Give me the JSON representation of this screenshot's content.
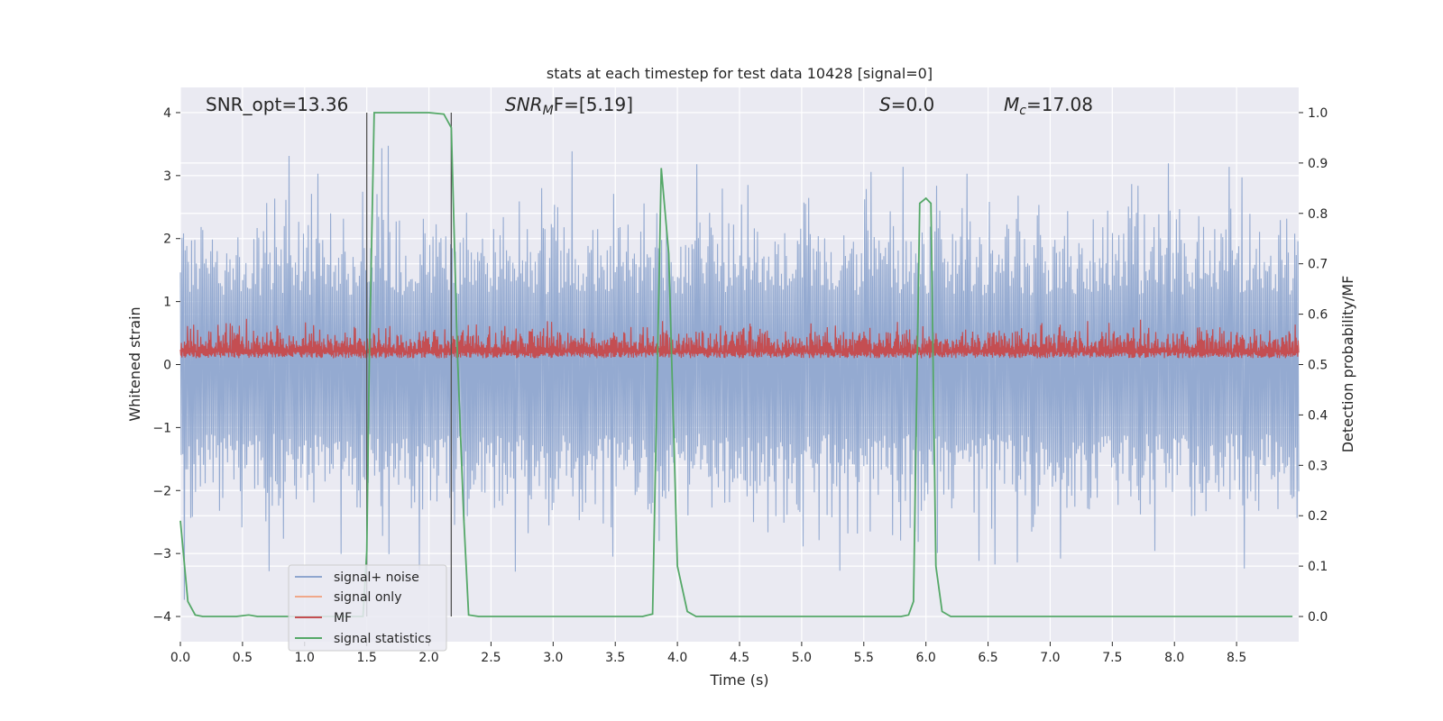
{
  "chart_data": {
    "type": "line",
    "title": "stats at each timestep for test data 10428 [signal=0]",
    "xlabel": "Time (s)",
    "ylabel": "Whitened strain",
    "ylabel_right": "Detection probability/MF",
    "xlim": [
      0.0,
      9.0
    ],
    "ylim": [
      -4.4,
      4.4
    ],
    "ylim_right": [
      -0.05,
      1.05
    ],
    "x_ticks": [
      "0.0",
      "0.5",
      "1.0",
      "1.5",
      "2.0",
      "2.5",
      "3.0",
      "3.5",
      "4.0",
      "4.5",
      "5.0",
      "5.5",
      "6.0",
      "6.5",
      "7.0",
      "7.5",
      "8.0",
      "8.5"
    ],
    "y_ticks": [
      "4",
      "3",
      "2",
      "1",
      "0",
      "−1",
      "−2",
      "−3",
      "−4"
    ],
    "y_ticks_right": [
      "1.0",
      "0.9",
      "0.8",
      "0.7",
      "0.6",
      "0.5",
      "0.4",
      "0.3",
      "0.2",
      "0.1",
      "0.0"
    ],
    "grid": true,
    "legend_position": "lower-left",
    "annotations": {
      "snr_opt": "SNR_opt=13.36",
      "snr_mf": "SNR_MF=[5.19]",
      "snr_mf_main": "SNR",
      "snr_mf_sub": "M",
      "snr_mf_rest": "F=[5.19]",
      "s_var": "S",
      "s_val": "=0.0",
      "mc_var": "M",
      "mc_sub": "c",
      "mc_val": "=17.08"
    },
    "vertical_markers": [
      1.5,
      2.18
    ],
    "series": [
      {
        "name": "signal+ noise",
        "color": "#8fa6cf",
        "axis": "left",
        "kind": "noise",
        "amplitude_range": [
          -4,
          4
        ]
      },
      {
        "name": "signal only",
        "color": "#f0a88a",
        "axis": "left",
        "values": []
      },
      {
        "name": "MF",
        "color": "#c44e52",
        "axis": "left",
        "kind": "band",
        "range": [
          0.1,
          1.0
        ]
      },
      {
        "name": "signal statistics",
        "color": "#55a868",
        "axis": "right",
        "x": [
          0.0,
          0.06,
          0.12,
          0.18,
          0.25,
          0.35,
          0.45,
          0.55,
          0.62,
          0.7,
          0.8,
          0.9,
          1.0,
          1.1,
          1.2,
          1.3,
          1.4,
          1.47,
          1.5,
          1.52,
          1.56,
          1.65,
          1.8,
          2.0,
          2.12,
          2.18,
          2.23,
          2.28,
          2.32,
          2.4,
          3.0,
          3.5,
          3.72,
          3.8,
          3.87,
          3.93,
          4.0,
          4.08,
          4.15,
          4.5,
          5.0,
          5.5,
          5.8,
          5.86,
          5.9,
          5.95,
          6.0,
          6.04,
          6.08,
          6.13,
          6.2,
          7.0,
          8.0,
          8.95
        ],
        "values": [
          0.19,
          0.03,
          0.003,
          0.0,
          0.0,
          0.0,
          0.0,
          0.003,
          0.0,
          0.0,
          0.0,
          0.0,
          0.0,
          0.0,
          0.0,
          0.0,
          0.0,
          0.0,
          0.13,
          0.5,
          1.0,
          1.0,
          1.0,
          1.0,
          0.997,
          0.97,
          0.52,
          0.2,
          0.003,
          0.0,
          0.0,
          0.0,
          0.0,
          0.005,
          0.89,
          0.72,
          0.1,
          0.01,
          0.0,
          0.0,
          0.0,
          0.0,
          0.0,
          0.003,
          0.03,
          0.82,
          0.83,
          0.82,
          0.1,
          0.01,
          0.0,
          0.0,
          0.0,
          0.0
        ]
      }
    ]
  }
}
